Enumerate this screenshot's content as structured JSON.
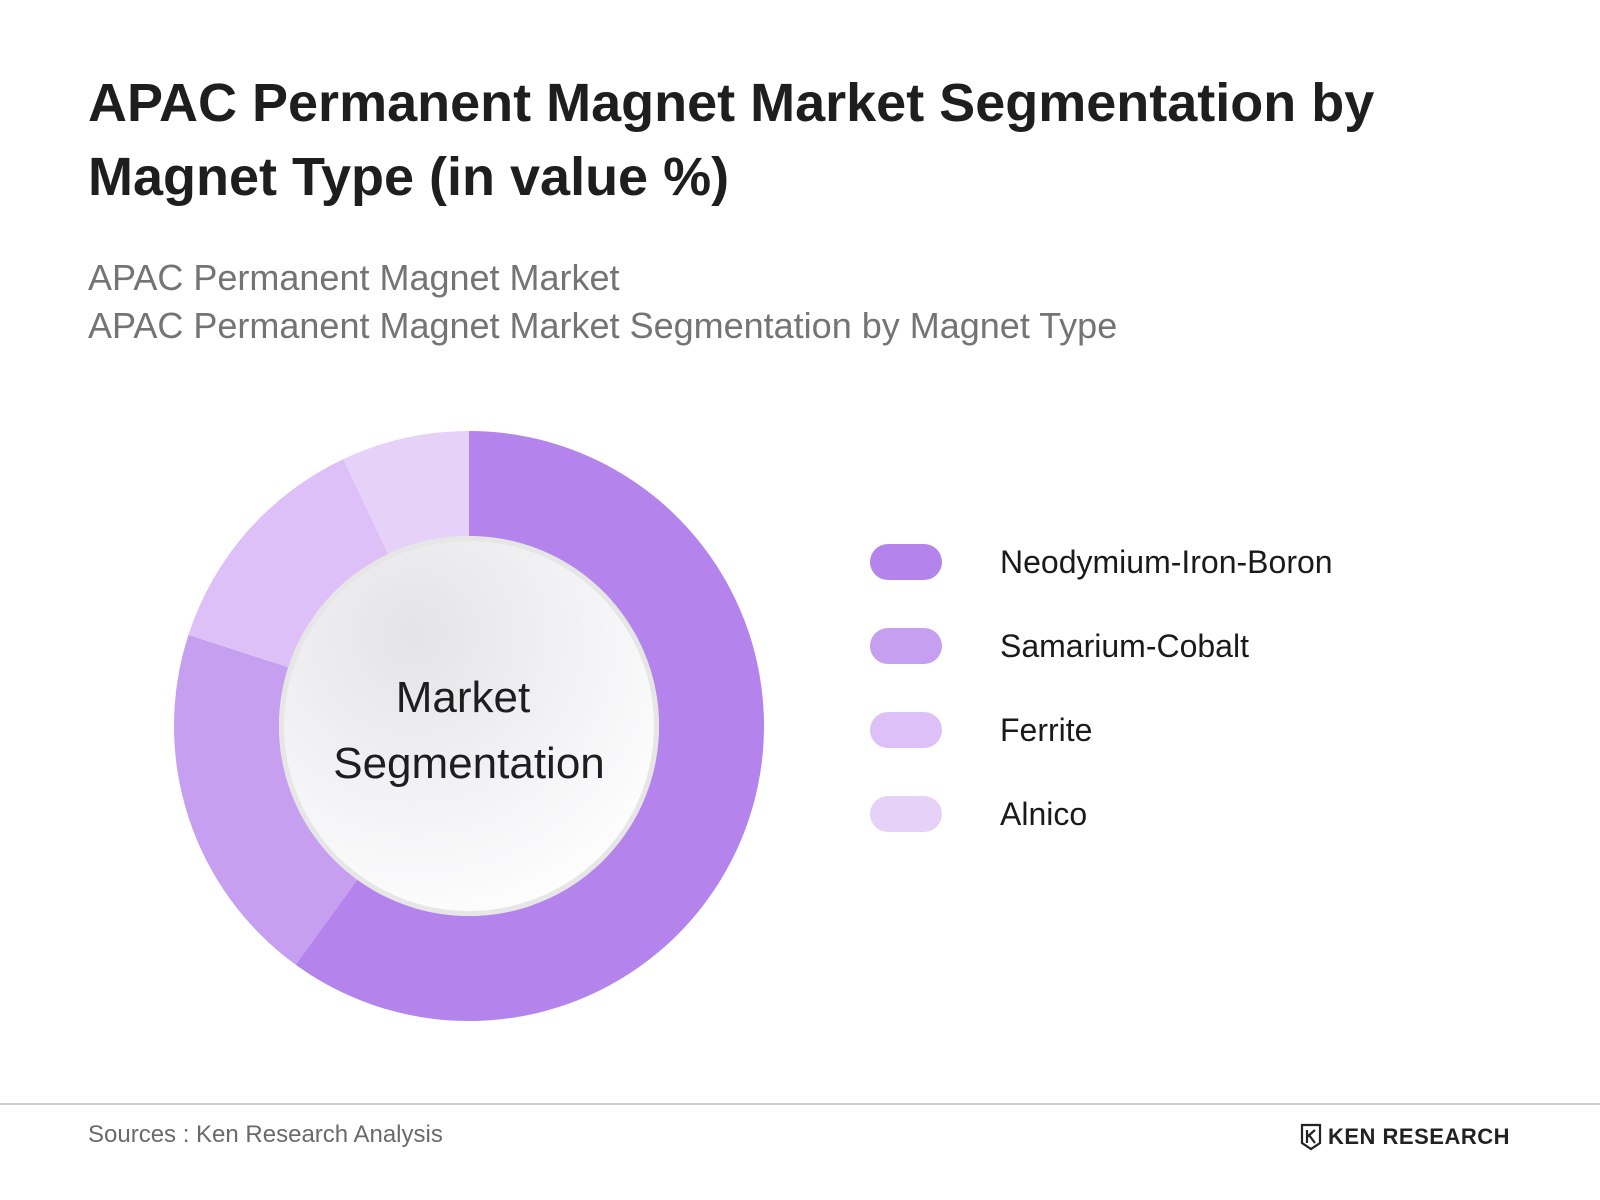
{
  "header": {
    "title": "APAC Permanent Magnet Market Segmentation by Magnet Type (in value %)",
    "subtitle_1": "APAC Permanent Magnet Market",
    "subtitle_2": "APAC Permanent Magnet Market Segmentation by Magnet Type"
  },
  "chart_data": {
    "type": "pie",
    "subtype": "donut",
    "center_label": [
      "Market",
      "Segmentation"
    ],
    "categories": [
      "Neodymium-Iron-Boron",
      "Samarium-Cobalt",
      "Ferrite",
      "Alnico"
    ],
    "values": [
      60,
      20,
      13,
      7
    ],
    "colors": [
      "#b484ec",
      "#c79ff0",
      "#dcc0f7",
      "#e6d1f9"
    ],
    "legend_position": "right"
  },
  "footer": {
    "sources": "Sources : Ken Research Analysis",
    "logo_text": "KEN RESEARCH"
  }
}
